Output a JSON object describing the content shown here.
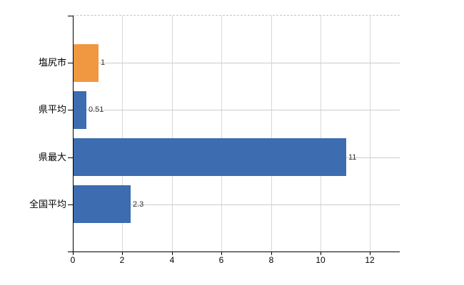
{
  "chart_data": {
    "type": "bar",
    "orientation": "horizontal",
    "title": "",
    "xlabel": "",
    "ylabel": "",
    "categories": [
      "塩尻市",
      "県平均",
      "県最大",
      "全国平均"
    ],
    "values": [
      1,
      0.51,
      11,
      2.3
    ],
    "value_labels": [
      "1",
      "0.51",
      "11",
      "2.3"
    ],
    "bar_colors": [
      "#EF9841",
      "#3D6CB0",
      "#3D6CB0",
      "#3D6CB0"
    ],
    "x_ticks": [
      "0",
      "2",
      "4",
      "6",
      "8",
      "10",
      "12"
    ],
    "x_tick_values": [
      0,
      2,
      4,
      6,
      8,
      10,
      12
    ],
    "xlim": [
      0,
      13.2
    ],
    "grid": true,
    "legend": false,
    "colors": {
      "background": "#ffffff",
      "axis": "#000000",
      "gridline": "#d8d8d8",
      "row_gridline": "#cccccc",
      "top_border": "#ccc4cc",
      "category_text": "#000000",
      "tick_text": "#000000",
      "value_text": "#333333"
    }
  }
}
